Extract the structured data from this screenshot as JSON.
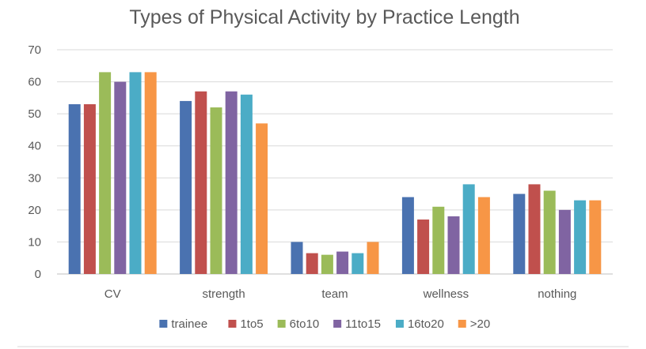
{
  "chart_data": {
    "type": "bar",
    "title": "Types of Physical Activity by Practice Length",
    "xlabel": "",
    "ylabel": "",
    "ylim": [
      0,
      70
    ],
    "yticks": [
      0,
      10,
      20,
      30,
      40,
      50,
      60,
      70
    ],
    "grid": true,
    "legend_position": "bottom",
    "categories": [
      "CV",
      "strength",
      "team",
      "wellness",
      "nothing"
    ],
    "series": [
      {
        "name": "trainee",
        "color": "#4a72b0",
        "values": [
          53,
          54,
          10,
          24,
          25
        ]
      },
      {
        "name": "1to5",
        "color": "#c0504d",
        "values": [
          53,
          57,
          6.5,
          17,
          28
        ]
      },
      {
        "name": "6to10",
        "color": "#9bbb59",
        "values": [
          63,
          52,
          6,
          21,
          26
        ]
      },
      {
        "name": "11to15",
        "color": "#8064a2",
        "values": [
          60,
          57,
          7,
          18,
          20
        ]
      },
      {
        "name": "16to20",
        "color": "#4bacc6",
        "values": [
          63,
          56,
          6.5,
          28,
          23
        ]
      },
      {
        "name": ">20",
        "color": "#f79646",
        "values": [
          63,
          47,
          10,
          24,
          23
        ]
      }
    ]
  }
}
